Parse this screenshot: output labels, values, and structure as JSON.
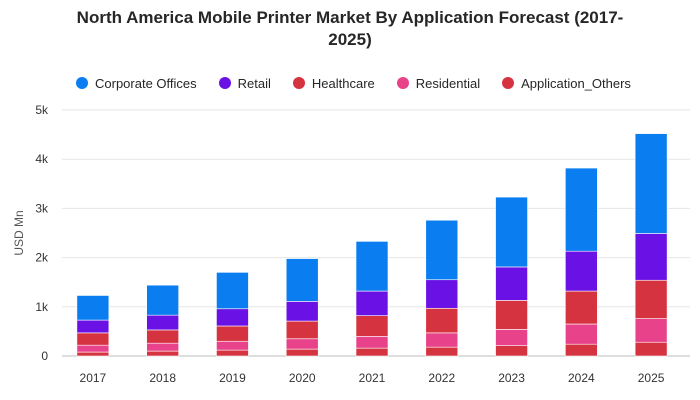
{
  "chart_data": {
    "type": "bar",
    "stacked": true,
    "title": "North America Mobile Printer Market By Application Forecast (2017-2025)",
    "title_lines": [
      "North America Mobile Printer Market By Application Forecast (2017-",
      "2025)"
    ],
    "xlabel": "",
    "ylabel": "USD Mn",
    "ylim": [
      0,
      5000
    ],
    "yticks": [
      0,
      1000,
      2000,
      3000,
      4000,
      5000
    ],
    "ytick_labels": [
      "0",
      "1k",
      "2k",
      "3k",
      "4k",
      "5k"
    ],
    "grid": true,
    "legend_position": "top",
    "categories": [
      "2017",
      "2018",
      "2019",
      "2020",
      "2021",
      "2022",
      "2023",
      "2024",
      "2025"
    ],
    "series": [
      {
        "name": "Application_Others",
        "color": "#d63340",
        "values": [
          80,
          100,
          120,
          140,
          160,
          180,
          210,
          240,
          280
        ]
      },
      {
        "name": "Residential",
        "color": "#e8428b",
        "values": [
          140,
          160,
          180,
          210,
          240,
          290,
          330,
          410,
          480
        ]
      },
      {
        "name": "Healthcare",
        "color": "#d63340",
        "values": [
          250,
          270,
          310,
          360,
          420,
          500,
          590,
          670,
          780
        ]
      },
      {
        "name": "Retail",
        "color": "#6a12e6",
        "values": [
          260,
          300,
          350,
          400,
          500,
          580,
          680,
          810,
          950
        ]
      },
      {
        "name": "Corporate Offices",
        "color": "#0a7ef0",
        "values": [
          500,
          610,
          740,
          870,
          1010,
          1210,
          1420,
          1690,
          2030
        ]
      }
    ],
    "legend_order": [
      "Corporate Offices",
      "Retail",
      "Healthcare",
      "Residential",
      "Application_Others"
    ]
  }
}
